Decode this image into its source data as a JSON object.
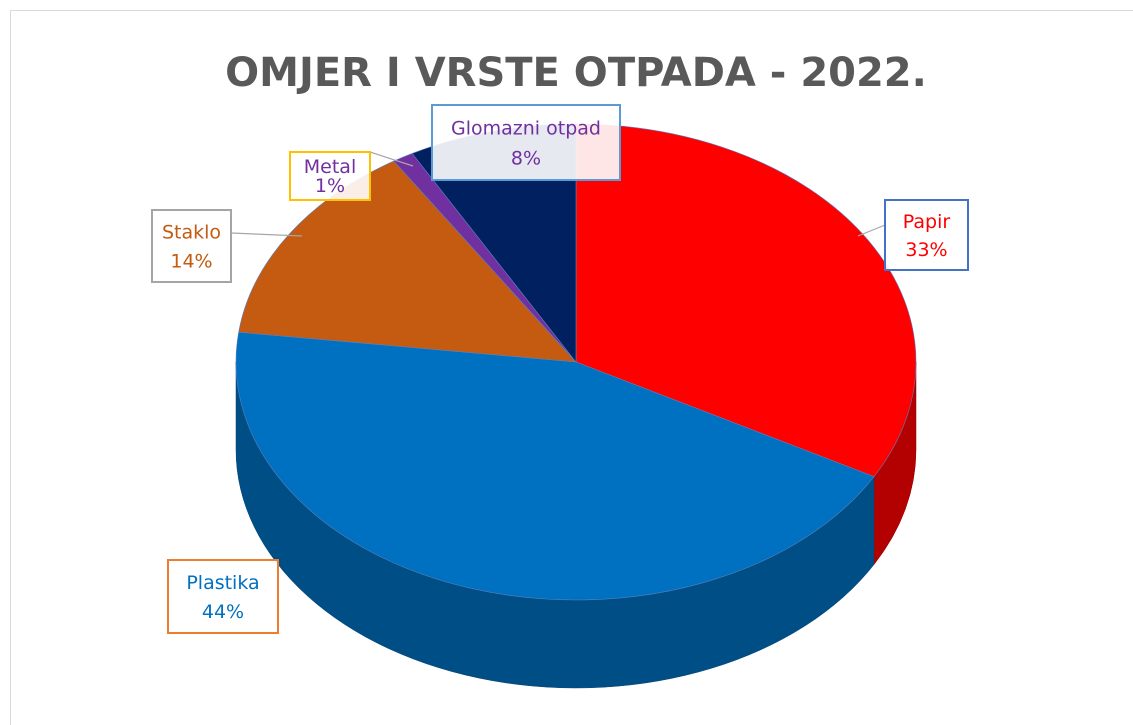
{
  "chart_data": {
    "type": "pie",
    "title": "OMJER I VRSTE OTPADA - 2022.",
    "categories": [
      "Papir",
      "Plastika",
      "Staklo",
      "Metal",
      "Glomazni otpad"
    ],
    "values": [
      33,
      44,
      14,
      1,
      8
    ],
    "value_labels": [
      "33%",
      "44%",
      "14%",
      "1%",
      "8%"
    ],
    "colors": [
      "#ff0000",
      "#0070c0",
      "#c55a11",
      "#7030a0",
      "#002060"
    ],
    "label_border_colors": [
      "#4472c4",
      "#ed7d31",
      "#a5a5a5",
      "#ffc000",
      "#5b9bd5"
    ]
  }
}
